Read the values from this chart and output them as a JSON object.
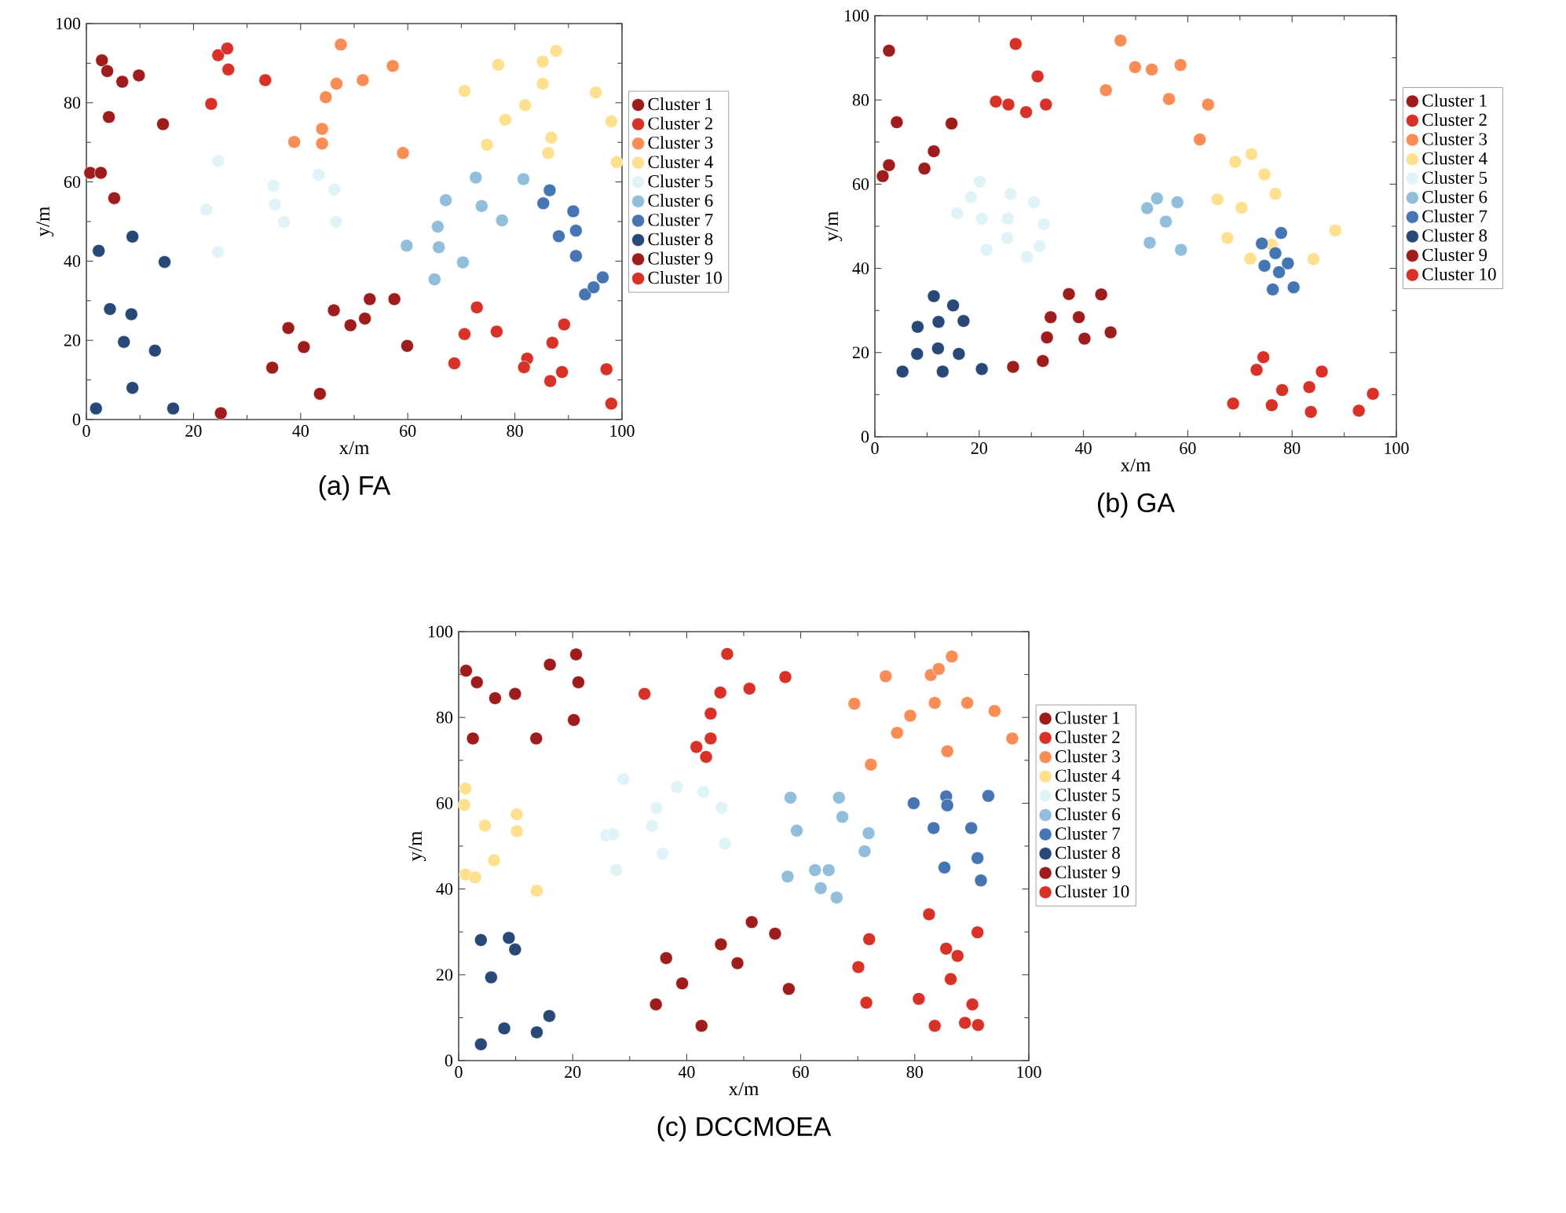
{
  "chart_data": [
    {
      "type": "scatter",
      "title": "(a) FA",
      "xlabel": "x/m",
      "ylabel": "y/m",
      "xlim": [
        0,
        100
      ],
      "ylim": [
        0,
        100
      ],
      "xticks": [
        0,
        20,
        40,
        60,
        80,
        100
      ],
      "yticks": [
        0,
        20,
        40,
        60,
        80,
        100
      ],
      "legend": "right",
      "marker": "circle",
      "series": [
        {
          "name": "Cluster 1",
          "color": "#9e1c1c",
          "x": [
            2.9,
            3.9,
            6.7,
            9.8,
            4.2,
            14.3,
            0.7,
            2.7,
            5.2
          ],
          "values": [
            90.7,
            88.0,
            85.3,
            86.9,
            76.4,
            74.6,
            62.3,
            62.3,
            55.9
          ]
        },
        {
          "name": "Cluster 2",
          "color": "#d83228",
          "x": [
            24.6,
            26.3,
            26.5,
            23.3,
            33.4
          ],
          "values": [
            92.0,
            93.7,
            88.4,
            79.7,
            85.7
          ]
        },
        {
          "name": "Cluster 3",
          "color": "#fa8c55",
          "x": [
            47.5,
            46.7,
            44.7,
            51.6,
            57.2,
            44.0,
            44.0,
            38.8,
            59.1
          ],
          "values": [
            94.7,
            84.8,
            81.4,
            85.7,
            89.3,
            73.4,
            69.7,
            70.1,
            67.3
          ]
        },
        {
          "name": "Cluster 4",
          "color": "#fee08e",
          "x": [
            70.6,
            76.9,
            87.7,
            85.2,
            85.2,
            81.9,
            78.2,
            74.8,
            86.8,
            86.2,
            95.1,
            98.0,
            99.0
          ],
          "values": [
            83.0,
            89.6,
            93.1,
            90.4,
            84.8,
            79.4,
            75.7,
            69.4,
            71.2,
            67.3,
            82.6,
            75.3,
            65.0
          ]
        },
        {
          "name": "Cluster 5",
          "color": "#e0f3f8",
          "x": [
            24.6,
            22.4,
            24.6,
            34.9,
            35.2,
            36.9,
            43.4,
            46.3,
            46.6
          ],
          "values": [
            65.3,
            53.0,
            42.3,
            59.0,
            54.3,
            49.9,
            61.8,
            58.1,
            49.9
          ]
        },
        {
          "name": "Cluster 6",
          "color": "#91bfdb",
          "x": [
            59.8,
            65.6,
            67.1,
            65.8,
            65.0,
            70.3,
            72.7,
            73.8,
            77.6,
            81.6
          ],
          "values": [
            43.9,
            48.7,
            55.4,
            43.5,
            35.4,
            39.7,
            61.1,
            53.9,
            50.3,
            60.7
          ]
        },
        {
          "name": "Cluster 7",
          "color": "#4575b4",
          "x": [
            86.5,
            85.3,
            88.2,
            90.9,
            91.4,
            91.4,
            93.1,
            94.7,
            96.4
          ],
          "values": [
            57.9,
            54.6,
            46.3,
            52.6,
            47.7,
            41.3,
            31.6,
            33.4,
            35.9
          ]
        },
        {
          "name": "Cluster 8",
          "color": "#284878",
          "x": [
            2.3,
            8.6,
            14.6,
            4.4,
            8.4,
            7.0,
            12.8,
            8.6,
            1.8,
            16.2
          ],
          "values": [
            42.6,
            46.2,
            39.8,
            27.9,
            26.6,
            19.6,
            17.4,
            8.0,
            2.8,
            2.8
          ]
        },
        {
          "name": "Cluster 9",
          "color": "#9e1c1c",
          "x": [
            25.1,
            34.7,
            37.7,
            40.6,
            43.6,
            46.2,
            49.3,
            52.0,
            52.9,
            57.5,
            59.9
          ],
          "values": [
            1.6,
            13.1,
            23.1,
            18.3,
            6.5,
            27.6,
            23.8,
            25.5,
            30.4,
            30.4,
            18.6
          ]
        },
        {
          "name": "Cluster 10",
          "color": "#d83228",
          "x": [
            68.7,
            70.6,
            72.9,
            76.6,
            82.3,
            81.7,
            87.0,
            89.2,
            88.8,
            86.6,
            97.1,
            98.0
          ],
          "values": [
            14.2,
            21.6,
            28.3,
            22.2,
            15.4,
            13.2,
            19.4,
            24.0,
            12.0,
            9.7,
            12.7,
            4.0
          ]
        }
      ]
    },
    {
      "type": "scatter",
      "title": "(b) GA",
      "xlabel": "x/m",
      "ylabel": "y/m",
      "xlim": [
        0,
        100
      ],
      "ylim": [
        0,
        100
      ],
      "xticks": [
        0,
        20,
        40,
        60,
        80,
        100
      ],
      "yticks": [
        0,
        20,
        40,
        60,
        80,
        100
      ],
      "legend": "right",
      "marker": "circle",
      "series": [
        {
          "name": "Cluster 1",
          "color": "#9e1c1c",
          "x": [
            2.7,
            4.2,
            2.7,
            1.5,
            9.5,
            11.3,
            14.7
          ],
          "values": [
            91.7,
            74.7,
            64.5,
            61.9,
            63.7,
            67.8,
            74.4
          ]
        },
        {
          "name": "Cluster 2",
          "color": "#d83228",
          "x": [
            27.0,
            31.2,
            23.2,
            25.6,
            29.0,
            32.8
          ],
          "values": [
            93.3,
            85.6,
            79.6,
            78.9,
            77.1,
            78.9
          ]
        },
        {
          "name": "Cluster 3",
          "color": "#fa8c55",
          "x": [
            47.1,
            49.9,
            53.1,
            58.6,
            56.4,
            44.3,
            63.9,
            62.3
          ],
          "values": [
            94.1,
            87.8,
            87.2,
            88.3,
            80.2,
            82.3,
            78.9,
            70.6
          ]
        },
        {
          "name": "Cluster 4",
          "color": "#fee08e",
          "x": [
            69.1,
            72.2,
            74.7,
            76.8,
            65.7,
            70.3,
            67.6,
            72.0,
            76.1,
            84.1,
            88.3
          ],
          "values": [
            65.3,
            67.1,
            62.3,
            57.7,
            56.4,
            54.4,
            47.2,
            42.3,
            45.6,
            42.2,
            49.0
          ]
        },
        {
          "name": "Cluster 5",
          "color": "#e0f3f8",
          "x": [
            20.1,
            18.4,
            15.8,
            20.5,
            26.0,
            25.5,
            30.5,
            32.4,
            21.4,
            25.4,
            31.6,
            29.2
          ],
          "values": [
            60.6,
            56.9,
            53.1,
            51.8,
            57.7,
            51.8,
            55.7,
            50.5,
            44.4,
            47.2,
            45.3,
            42.7
          ]
        },
        {
          "name": "Cluster 6",
          "color": "#91bfdb",
          "x": [
            52.2,
            54.1,
            58.0,
            55.8,
            52.7,
            58.7
          ],
          "values": [
            54.3,
            56.6,
            55.7,
            51.1,
            46.1,
            44.4
          ]
        },
        {
          "name": "Cluster 7",
          "color": "#4575b4",
          "x": [
            77.9,
            74.2,
            76.8,
            79.2,
            74.7,
            77.5,
            76.3,
            80.3
          ],
          "values": [
            48.4,
            45.9,
            43.6,
            41.2,
            40.6,
            39.1,
            35.0,
            35.5
          ]
        },
        {
          "name": "Cluster 8",
          "color": "#284878",
          "x": [
            11.3,
            15.0,
            8.2,
            12.2,
            17.0,
            8.1,
            12.1,
            16.1,
            5.3,
            13.0,
            20.5
          ],
          "values": [
            33.4,
            31.2,
            26.1,
            27.3,
            27.5,
            19.7,
            21.0,
            19.7,
            15.5,
            15.5,
            16.1
          ]
        },
        {
          "name": "Cluster 9",
          "color": "#9e1c1c",
          "x": [
            37.2,
            43.4,
            33.7,
            39.1,
            33.0,
            40.2,
            45.2,
            26.5,
            32.2
          ],
          "values": [
            33.9,
            33.8,
            28.4,
            28.4,
            23.6,
            23.3,
            24.8,
            16.6,
            18.0
          ]
        },
        {
          "name": "Cluster 10",
          "color": "#d83228",
          "x": [
            74.5,
            73.2,
            68.7,
            76.1,
            78.1,
            83.3,
            85.7,
            83.6,
            92.8,
            95.5
          ],
          "values": [
            18.9,
            15.9,
            7.9,
            7.5,
            11.1,
            11.8,
            15.5,
            5.9,
            6.2,
            10.2
          ]
        }
      ]
    },
    {
      "type": "scatter",
      "title": "(c) DCCMOEA",
      "xlabel": "x/m",
      "ylabel": "y/m",
      "xlim": [
        0,
        100
      ],
      "ylim": [
        0,
        100
      ],
      "xticks": [
        0,
        20,
        40,
        60,
        80,
        100
      ],
      "yticks": [
        0,
        20,
        40,
        60,
        80,
        100
      ],
      "legend": "right",
      "marker": "circle",
      "series": [
        {
          "name": "Cluster 1",
          "color": "#9e1c1c",
          "x": [
            1.3,
            3.2,
            6.4,
            9.9,
            16.0,
            20.6,
            21.0,
            20.2,
            2.5,
            13.6
          ],
          "values": [
            90.9,
            88.2,
            84.5,
            85.5,
            92.3,
            94.7,
            88.2,
            79.4,
            75.1,
            75.1
          ]
        },
        {
          "name": "Cluster 2",
          "color": "#d83228",
          "x": [
            32.6,
            47.1,
            51.0,
            57.3,
            45.9,
            44.2,
            44.2,
            41.7,
            43.4
          ],
          "values": [
            85.5,
            94.8,
            86.7,
            89.4,
            85.8,
            80.9,
            75.1,
            73.1,
            70.8
          ]
        },
        {
          "name": "Cluster 3",
          "color": "#fa8c55",
          "x": [
            69.4,
            74.9,
            82.8,
            84.2,
            86.5,
            83.5,
            89.2,
            94.0,
            97.1,
            79.2,
            76.9,
            72.3,
            85.7
          ],
          "values": [
            83.2,
            89.6,
            89.9,
            91.3,
            94.2,
            83.4,
            83.4,
            81.5,
            75.1,
            80.4,
            76.4,
            69.0,
            72.1
          ]
        },
        {
          "name": "Cluster 4",
          "color": "#fee08e",
          "x": [
            1.2,
            1.0,
            4.6,
            10.2,
            10.2,
            6.2,
            1.2,
            2.9,
            13.7
          ],
          "values": [
            63.4,
            59.6,
            54.8,
            57.4,
            53.5,
            46.7,
            43.4,
            42.7,
            39.6
          ]
        },
        {
          "name": "Cluster 5",
          "color": "#e0f3f8",
          "x": [
            28.9,
            34.7,
            38.3,
            42.9,
            46.1,
            33.9,
            25.9,
            27.1,
            35.8,
            46.7,
            27.6
          ],
          "values": [
            65.6,
            58.9,
            63.8,
            62.6,
            58.9,
            54.7,
            52.5,
            52.8,
            48.2,
            50.6,
            44.4
          ]
        },
        {
          "name": "Cluster 6",
          "color": "#91bfdb",
          "x": [
            58.2,
            66.7,
            59.3,
            67.3,
            71.9,
            71.2,
            57.7,
            62.5,
            64.9,
            63.5,
            66.3
          ],
          "values": [
            61.3,
            61.3,
            53.6,
            56.8,
            53.0,
            48.8,
            42.9,
            44.4,
            44.4,
            40.2,
            38.0
          ]
        },
        {
          "name": "Cluster 7",
          "color": "#4575b4",
          "x": [
            79.8,
            85.5,
            85.7,
            92.9,
            83.3,
            89.9,
            91.0,
            85.2,
            91.6
          ],
          "values": [
            60.0,
            61.6,
            59.5,
            61.7,
            54.2,
            54.2,
            47.2,
            45.0,
            42.0
          ]
        },
        {
          "name": "Cluster 8",
          "color": "#284878",
          "x": [
            3.9,
            8.8,
            9.9,
            5.7,
            8.0,
            13.7,
            15.9,
            3.9
          ],
          "values": [
            28.1,
            28.6,
            25.9,
            19.4,
            7.5,
            6.6,
            10.4,
            3.8
          ]
        },
        {
          "name": "Cluster 9",
          "color": "#9e1c1c",
          "x": [
            51.4,
            55.5,
            46.0,
            48.9,
            36.4,
            39.2,
            34.6,
            42.6,
            57.9
          ],
          "values": [
            32.3,
            29.6,
            27.1,
            22.7,
            23.9,
            18.0,
            13.1,
            8.1,
            16.7
          ]
        },
        {
          "name": "Cluster 10",
          "color": "#d83228",
          "x": [
            82.5,
            91.0,
            72.0,
            70.1,
            85.5,
            87.5,
            86.3,
            71.5,
            80.7,
            83.5,
            90.1,
            88.8,
            91.1
          ],
          "values": [
            34.1,
            29.9,
            28.3,
            21.8,
            26.1,
            24.4,
            19.0,
            13.5,
            14.4,
            8.1,
            13.1,
            8.8,
            8.3
          ]
        }
      ]
    }
  ]
}
